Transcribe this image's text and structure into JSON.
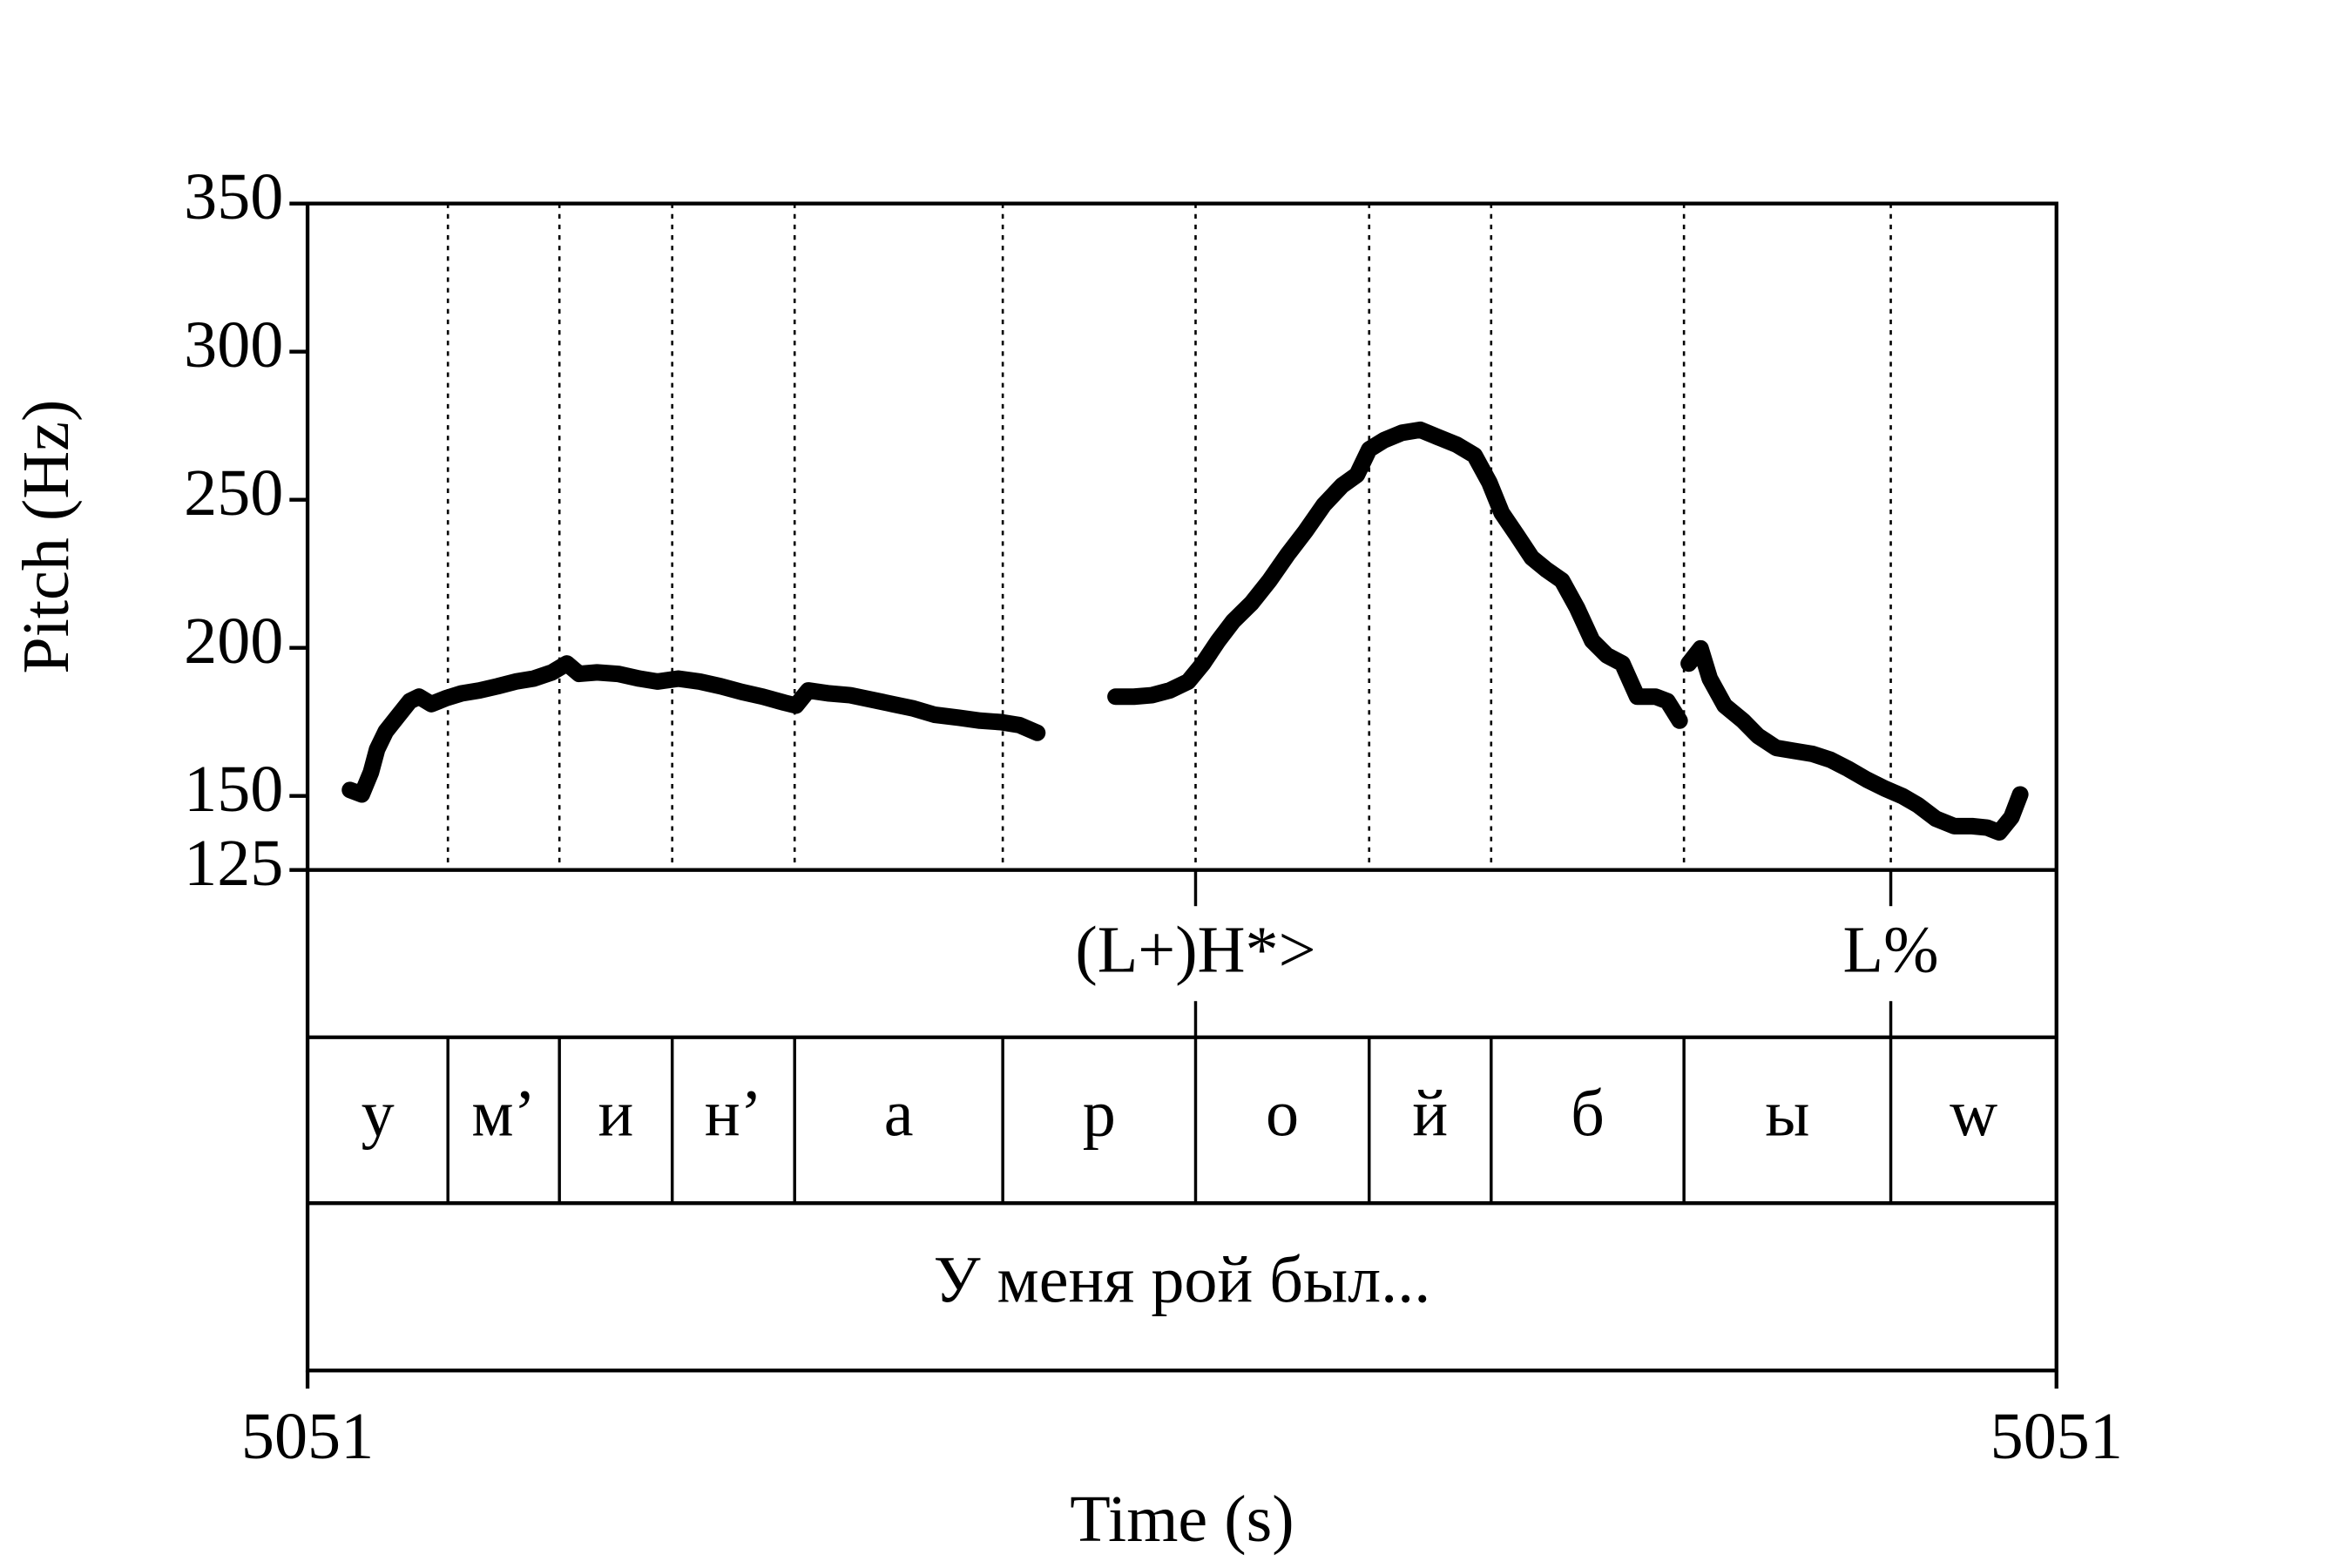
{
  "chart_data": {
    "type": "line",
    "x_label": "Time (s)",
    "y_label": "Pitch (Hz)",
    "color": "#000000",
    "xlim": [
      5051,
      5051.4
    ],
    "xticks": [
      {
        "value": 5051,
        "label": "5051"
      },
      {
        "value": 5051.4,
        "label": "5051"
      }
    ],
    "ylim": [
      125,
      350
    ],
    "yticks": [
      125,
      150,
      200,
      250,
      300,
      350
    ],
    "x": [
      5051.0097,
      5051.0124,
      5051.0145,
      5051.0159,
      5051.0179,
      5051.0207,
      5051.0234,
      5051.0255,
      5051.0283,
      5051.0317,
      5051.0352,
      5051.0393,
      5051.0434,
      5051.0476,
      5051.0517,
      5051.0559,
      5051.0593,
      5051.0621,
      5051.0662,
      5051.071,
      5051.0759,
      5051.08,
      5051.0848,
      5051.0897,
      5051.0945,
      5051.0993,
      5051.1041,
      5051.109,
      5051.1117,
      5051.1145,
      5051.1193,
      5051.1241,
      5051.129,
      5051.1338,
      5051.1386,
      5051.1434,
      5051.149,
      5051.1538,
      5051.1586,
      5051.1628,
      5051.1669,
      null,
      5051.1848,
      5051.189,
      5051.1931,
      5051.1972,
      5051.2014,
      5051.2048,
      5051.2083,
      5051.2117,
      5051.2159,
      5051.22,
      5051.2241,
      5051.2283,
      5051.2324,
      5051.2366,
      5051.24,
      5051.2428,
      5051.2462,
      5051.2503,
      5051.2545,
      5051.2586,
      5051.2628,
      5051.2669,
      5051.2703,
      5051.2731,
      5051.2766,
      5051.28,
      5051.2834,
      5051.2869,
      5051.2903,
      5051.2938,
      5051.2972,
      5051.3007,
      5051.3041,
      5051.3083,
      5051.311,
      5051.3138,
      null,
      5051.3159,
      5051.3186,
      5051.3207,
      5051.3241,
      5051.3283,
      5051.3317,
      5051.3359,
      5051.34,
      5051.3441,
      5051.3483,
      5051.3524,
      5051.3566,
      5051.3607,
      5051.3648,
      5051.3683,
      5051.3724,
      5051.3766,
      5051.3807,
      5051.3841,
      5051.3869,
      5051.3897,
      5051.3917
    ],
    "values": [
      152,
      150.5,
      158,
      165.7,
      171.8,
      177,
      182,
      183.5,
      181,
      183,
      184.6,
      185.6,
      187,
      188.6,
      189.6,
      191.7,
      194.7,
      191.2,
      191.7,
      191.2,
      189.6,
      188.6,
      189.6,
      188.6,
      187,
      185.1,
      183.5,
      181.5,
      180.5,
      185.6,
      184.6,
      184,
      182.5,
      181,
      179.5,
      177.4,
      176.4,
      175.4,
      174.9,
      173.9,
      171.3,
      null,
      183.5,
      183.5,
      184,
      185.6,
      188.6,
      194.7,
      202.4,
      209,
      215.1,
      222.7,
      231.4,
      239.5,
      248.2,
      254.8,
      258.4,
      267,
      270.1,
      272.6,
      273.6,
      271.1,
      268.6,
      265,
      255.8,
      245.6,
      238,
      230.4,
      226.3,
      222.7,
      213.6,
      202.4,
      197.4,
      194.7,
      183.5,
      183.5,
      182,
      175.4,
      null,
      194.7,
      199.8,
      189.6,
      180.5,
      175.4,
      170.3,
      166.2,
      165.2,
      164.2,
      162.2,
      159.1,
      155.5,
      152.5,
      149.9,
      146.9,
      142.3,
      139.8,
      139.8,
      139.3,
      137.7,
      142.8,
      150.5
    ],
    "point_tier": {
      "times": [
        5051.2031,
        5051.3621
      ],
      "labels": [
        "(L+)H*>",
        "L%"
      ]
    },
    "segment_tier": {
      "boundaries": [
        5051.0321,
        5051.0576,
        5051.0834,
        5051.1114,
        5051.159,
        5051.2031,
        5051.2428,
        5051.2707,
        5051.3148,
        5051.3621
      ],
      "labels": [
        "у",
        "м’",
        "и",
        "н’",
        "а",
        "р",
        "о",
        "й",
        "б",
        "ы",
        "w"
      ]
    },
    "word_tier": {
      "labels": [
        "У меня рой был..."
      ]
    }
  }
}
